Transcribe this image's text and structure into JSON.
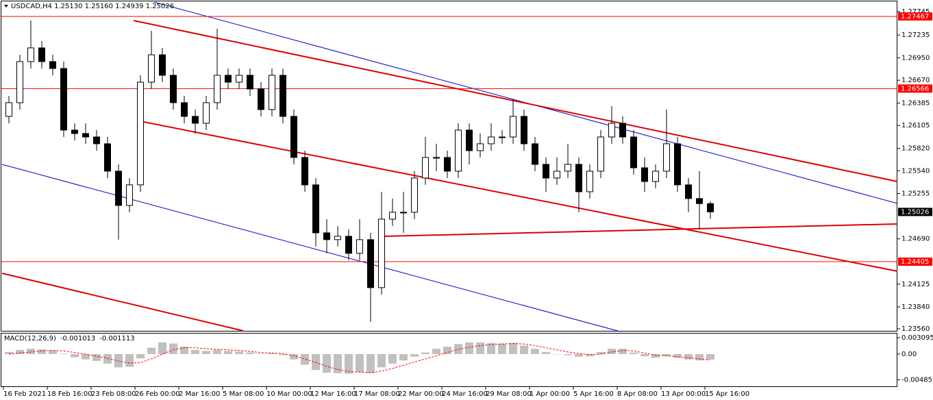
{
  "chart_data": [
    {
      "type": "candlestick",
      "header": "USDCAD,H4  1.25130 1.25160 1.24939 1.25026",
      "categories": [
        "16 Feb 2021",
        null,
        null,
        null,
        "18 Feb 16:00",
        null,
        null,
        null,
        "23 Feb 08:00",
        null,
        null,
        null,
        "26 Feb 00:00",
        null,
        null,
        null,
        "2 Mar 16:00",
        null,
        null,
        null,
        "5 Mar 08:00",
        null,
        null,
        null,
        "10 Mar 00:00",
        null,
        null,
        null,
        "12 Mar 16:00",
        null,
        null,
        null,
        "17 Mar 08:00",
        null,
        null,
        null,
        "22 Mar 00:00",
        null,
        null,
        null,
        "24 Mar 16:00",
        null,
        null,
        null,
        "29 Mar 08:00",
        null,
        null,
        null,
        "1 Apr 00:00",
        null,
        null,
        null,
        "5 Apr 16:00",
        null,
        null,
        null,
        "8 Apr 08:00",
        null,
        null,
        null,
        "13 Apr 00:00",
        null,
        null,
        null,
        "15 Apr 16:00"
      ],
      "ohlc": [
        [
          1.26219,
          1.26475,
          1.26133,
          1.2639
        ],
        [
          1.2639,
          1.26988,
          1.26304,
          1.26903
        ],
        [
          1.26903,
          1.27416,
          1.26817,
          1.27074
        ],
        [
          1.27074,
          1.27159,
          1.26817,
          1.26903
        ],
        [
          1.26903,
          1.26988,
          1.26732,
          1.26817
        ],
        [
          1.26817,
          1.26903,
          1.25962,
          1.26048
        ],
        [
          1.26048,
          1.26133,
          1.25919,
          1.26005
        ],
        [
          1.26005,
          1.26133,
          1.25877,
          1.25962
        ],
        [
          1.25962,
          1.26048,
          1.25791,
          1.25877
        ],
        [
          1.25877,
          1.25962,
          1.25449,
          1.25535
        ],
        [
          1.25535,
          1.2562,
          1.2468,
          1.25107
        ],
        [
          1.25107,
          1.25449,
          1.25022,
          1.25364
        ],
        [
          1.25364,
          1.26732,
          1.25278,
          1.26646
        ],
        [
          1.26646,
          1.27287,
          1.26561,
          1.26988
        ],
        [
          1.26988,
          1.27074,
          1.26646,
          1.26732
        ],
        [
          1.26732,
          1.26817,
          1.26304,
          1.2639
        ],
        [
          1.2639,
          1.26475,
          1.26133,
          1.26219
        ],
        [
          1.26219,
          1.26304,
          1.26005,
          1.26133
        ],
        [
          1.26133,
          1.26475,
          1.26048,
          1.2639
        ],
        [
          1.2639,
          1.27313,
          1.26304,
          1.26732
        ],
        [
          1.26732,
          1.26817,
          1.26561,
          1.26646
        ],
        [
          1.26646,
          1.26817,
          1.26561,
          1.26732
        ],
        [
          1.26732,
          1.26817,
          1.26475,
          1.26561
        ],
        [
          1.26561,
          1.26646,
          1.26219,
          1.26304
        ],
        [
          1.26304,
          1.26817,
          1.26219,
          1.26732
        ],
        [
          1.26732,
          1.26817,
          1.26133,
          1.26219
        ],
        [
          1.26219,
          1.26304,
          1.2562,
          1.25706
        ],
        [
          1.25706,
          1.25791,
          1.25278,
          1.25364
        ],
        [
          1.25364,
          1.25449,
          1.24594,
          1.24765
        ],
        [
          1.24765,
          1.24936,
          1.24509,
          1.2468
        ],
        [
          1.2468,
          1.24851,
          1.24594,
          1.24722
        ],
        [
          1.24722,
          1.24808,
          1.24423,
          1.24509
        ],
        [
          1.24509,
          1.24936,
          1.24423,
          1.2468
        ],
        [
          1.2468,
          1.24765,
          1.23653,
          1.24081
        ],
        [
          1.24081,
          1.25278,
          1.23996,
          1.24936
        ],
        [
          1.24936,
          1.25193,
          1.24851,
          1.25022
        ],
        [
          1.25022,
          1.25278,
          1.24765,
          1.25022
        ],
        [
          1.25022,
          1.25535,
          1.24936,
          1.25449
        ],
        [
          1.25449,
          1.25962,
          1.25364,
          1.25706
        ],
        [
          1.25706,
          1.25877,
          1.25535,
          1.25706
        ],
        [
          1.25706,
          1.25791,
          1.25449,
          1.25535
        ],
        [
          1.25535,
          1.26133,
          1.25449,
          1.26048
        ],
        [
          1.26048,
          1.26133,
          1.2562,
          1.25791
        ],
        [
          1.25791,
          1.26005,
          1.25706,
          1.25877
        ],
        [
          1.25877,
          1.26133,
          1.25791,
          1.25962
        ],
        [
          1.25962,
          1.26048,
          1.25877,
          1.25962
        ],
        [
          1.25962,
          1.26432,
          1.25877,
          1.26219
        ],
        [
          1.26219,
          1.26304,
          1.25791,
          1.25877
        ],
        [
          1.25877,
          1.25962,
          1.25535,
          1.2562
        ],
        [
          1.2562,
          1.25706,
          1.25278,
          1.25449
        ],
        [
          1.25449,
          1.25706,
          1.25364,
          1.25535
        ],
        [
          1.25535,
          1.25877,
          1.25449,
          1.2562
        ],
        [
          1.2562,
          1.25706,
          1.25022,
          1.25278
        ],
        [
          1.25278,
          1.2562,
          1.25193,
          1.25535
        ],
        [
          1.25535,
          1.26048,
          1.25449,
          1.25962
        ],
        [
          1.25962,
          1.26347,
          1.25877,
          1.26133
        ],
        [
          1.26133,
          1.26219,
          1.25877,
          1.25962
        ],
        [
          1.25962,
          1.26048,
          1.25492,
          1.25577
        ],
        [
          1.25577,
          1.25706,
          1.25278,
          1.25406
        ],
        [
          1.25406,
          1.2562,
          1.25321,
          1.25535
        ],
        [
          1.25535,
          1.26304,
          1.25449,
          1.25877
        ],
        [
          1.25877,
          1.25962,
          1.25278,
          1.25364
        ],
        [
          1.25364,
          1.25449,
          1.25022,
          1.25193
        ],
        [
          1.25193,
          1.25535,
          1.24808,
          1.2513
        ],
        [
          1.2513,
          1.2516,
          1.24939,
          1.25026
        ]
      ],
      "ylim": [
        1.23533,
        1.27672
      ],
      "yticks": [
        1.27745,
        1.27235,
        {
          "value": 1.2695,
          "label": "1.26950"
        },
        {
          "value": 1.2667,
          "label": "1.26670"
        },
        1.26385,
        1.26105,
        {
          "value": 1.2582,
          "label": "1.25820"
        },
        {
          "value": 1.2554,
          "label": "1.25540"
        },
        1.25255,
        {
          "value": 1.2469,
          "label": "1.24690"
        },
        1.24125,
        {
          "value": 1.2384,
          "label": "1.23840"
        },
        {
          "value": 1.2356,
          "label": "1.23560"
        }
      ],
      "levels": [
        1.27467,
        1.26566,
        1.24405
      ],
      "level_color": "#ff0000"
    },
    {
      "type": "macd",
      "title": "MACD(12,26,9)",
      "main": [
        0.0004,
        0.0008,
        0.001,
        0.0009,
        0.0007,
        0.0001,
        -0.0006,
        -0.001,
        -0.0013,
        -0.0018,
        -0.0025,
        -0.0024,
        -0.0008,
        0.0012,
        0.0022,
        0.002,
        0.0014,
        0.0008,
        0.0006,
        0.0008,
        0.0006,
        0.0005,
        0.0003,
        0.0001,
        0.0002,
        -0.0002,
        -0.001,
        -0.002,
        -0.003,
        -0.0035,
        -0.0036,
        -0.0037,
        -0.0034,
        -0.0036,
        -0.0025,
        -0.0018,
        -0.0012,
        -0.0005,
        0.0003,
        0.001,
        0.0014,
        0.0019,
        0.0022,
        0.0022,
        0.0021,
        0.002,
        0.0021,
        0.0016,
        0.001,
        0.0004,
        0,
        -0.0002,
        -0.0005,
        -0.0004,
        0.0004,
        0.001,
        0.001,
        0.0003,
        -0.0004,
        -0.0007,
        -0.0004,
        -0.0007,
        -0.001,
        -0.0012,
        -0.001013
      ],
      "signal": [
        0,
        0.0002,
        0.0004,
        0.0006,
        0.0007,
        0.0006,
        0.0003,
        0,
        -0.0004,
        -0.0008,
        -0.0013,
        -0.0017,
        -0.0016,
        -0.0009,
        0,
        0.0008,
        0.0012,
        0.0012,
        0.001,
        0.0009,
        0.0008,
        0.0007,
        0.0005,
        0.0003,
        0.0002,
        0.0001,
        -0.0003,
        -0.0009,
        -0.0016,
        -0.0023,
        -0.0029,
        -0.0033,
        -0.0034,
        -0.0035,
        -0.0032,
        -0.0027,
        -0.0021,
        -0.0015,
        -0.0009,
        -0.0003,
        0.0003,
        0.0009,
        0.0013,
        0.0016,
        0.0018,
        0.0019,
        0.002,
        0.0019,
        0.0016,
        0.0012,
        0.0008,
        0.0004,
        0.0001,
        -0.0001,
        0,
        0.0004,
        0.0007,
        0.0006,
        0.0002,
        -0.0002,
        -0.0003,
        -0.0005,
        -0.0007,
        -0.0009,
        -0.001113
      ],
      "main_color": "#c0c0c0",
      "signal_color": "#ff0000",
      "ylim": [
        -0.0062,
        0.004
      ],
      "yticks": [
        0.003095,
        {
          "value": 0,
          "label": "0.00"
        },
        -0.004859
      ]
    }
  ]
}
